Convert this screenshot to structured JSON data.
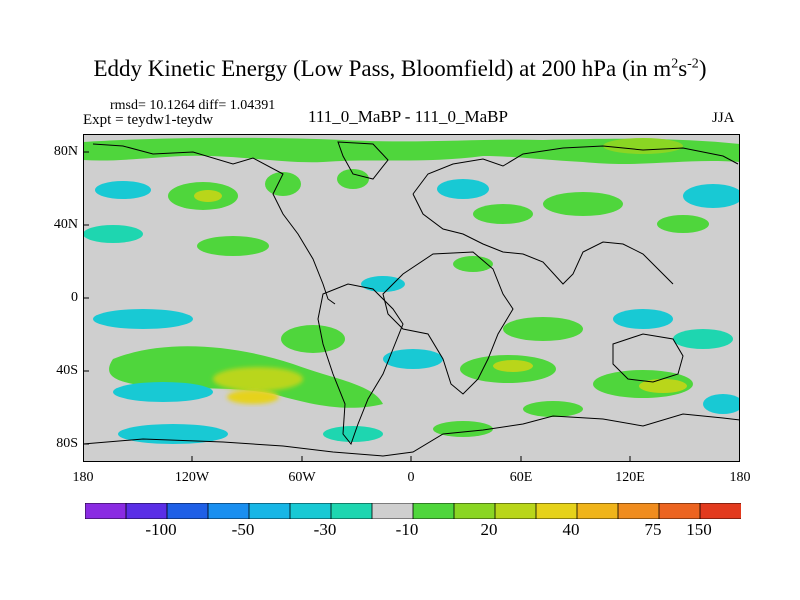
{
  "title": {
    "main": "Eddy Kinetic Energy (Low Pass, Bloomfield) at 200 hPa (in m",
    "sup1": "2",
    "mid": "s",
    "sup2": "-2",
    "end": ")"
  },
  "stats": {
    "rmsd_text": "rmsd= 10.1264 diff= 1.04391"
  },
  "experiment": {
    "label": "Expt = teydw1-teydw"
  },
  "runs": {
    "label": "111_0_MaBP - 111_0_MaBP"
  },
  "season": {
    "label": "JJA"
  },
  "axes": {
    "y_ticks": [
      "80N",
      "40N",
      "0",
      "40S",
      "80S"
    ],
    "x_ticks": [
      "180",
      "120W",
      "60W",
      "0",
      "60E",
      "120E",
      "180"
    ]
  },
  "colorbar": {
    "colors": [
      "#8a2be2",
      "#5a2ee6",
      "#1f5fe6",
      "#1a8ff0",
      "#17b6e6",
      "#18c9d4",
      "#1ed6b0",
      "#cfcfcf",
      "#4fd63c",
      "#8ad623",
      "#b9d61a",
      "#e6d21a",
      "#f0b41a",
      "#f08c1e",
      "#ec6420",
      "#e23a1e"
    ],
    "labels": [
      "-100",
      "-50",
      "-30",
      "-10",
      "20",
      "40",
      "75",
      "150"
    ]
  },
  "map": {
    "background": "#cfcfcf",
    "coastline_color": "#000000"
  }
}
